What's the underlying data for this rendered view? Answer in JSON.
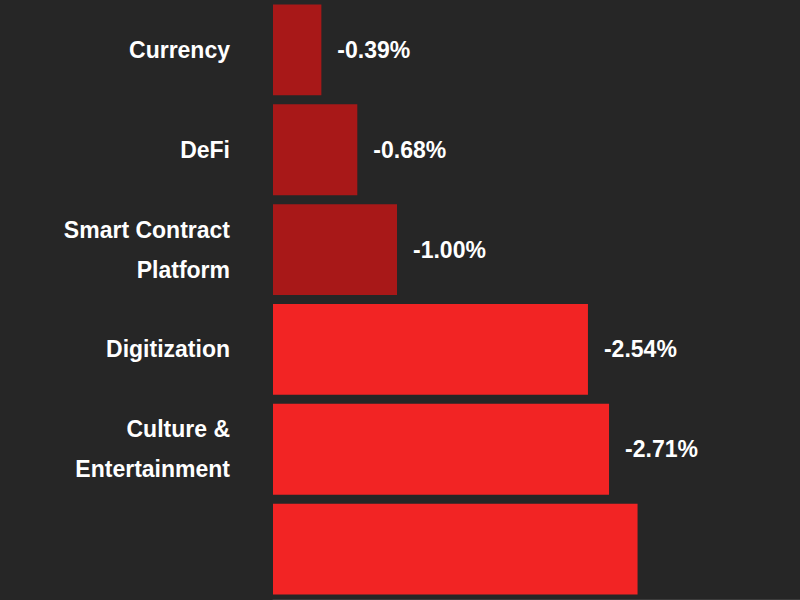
{
  "chart_data": {
    "type": "bar",
    "orientation": "horizontal",
    "categories": [
      "Currency",
      "DeFi",
      "Smart Contract\nPlatform",
      "Digitization",
      "Culture &\nEntertainment",
      null
    ],
    "values": [
      -0.39,
      -0.68,
      -1.0,
      -2.54,
      -2.71,
      -2.94
    ],
    "value_labels": [
      "-0.39%",
      "-0.68%",
      "-1.00%",
      "-2.54%",
      "-2.71%",
      null
    ],
    "colors": [
      "#a81818",
      "#a81818",
      "#a81818",
      "#f22424",
      "#f22424",
      "#f22424"
    ],
    "xlim": [
      -4.25,
      0
    ],
    "data_labels": true,
    "tick_labels": "y",
    "grid": false
  }
}
